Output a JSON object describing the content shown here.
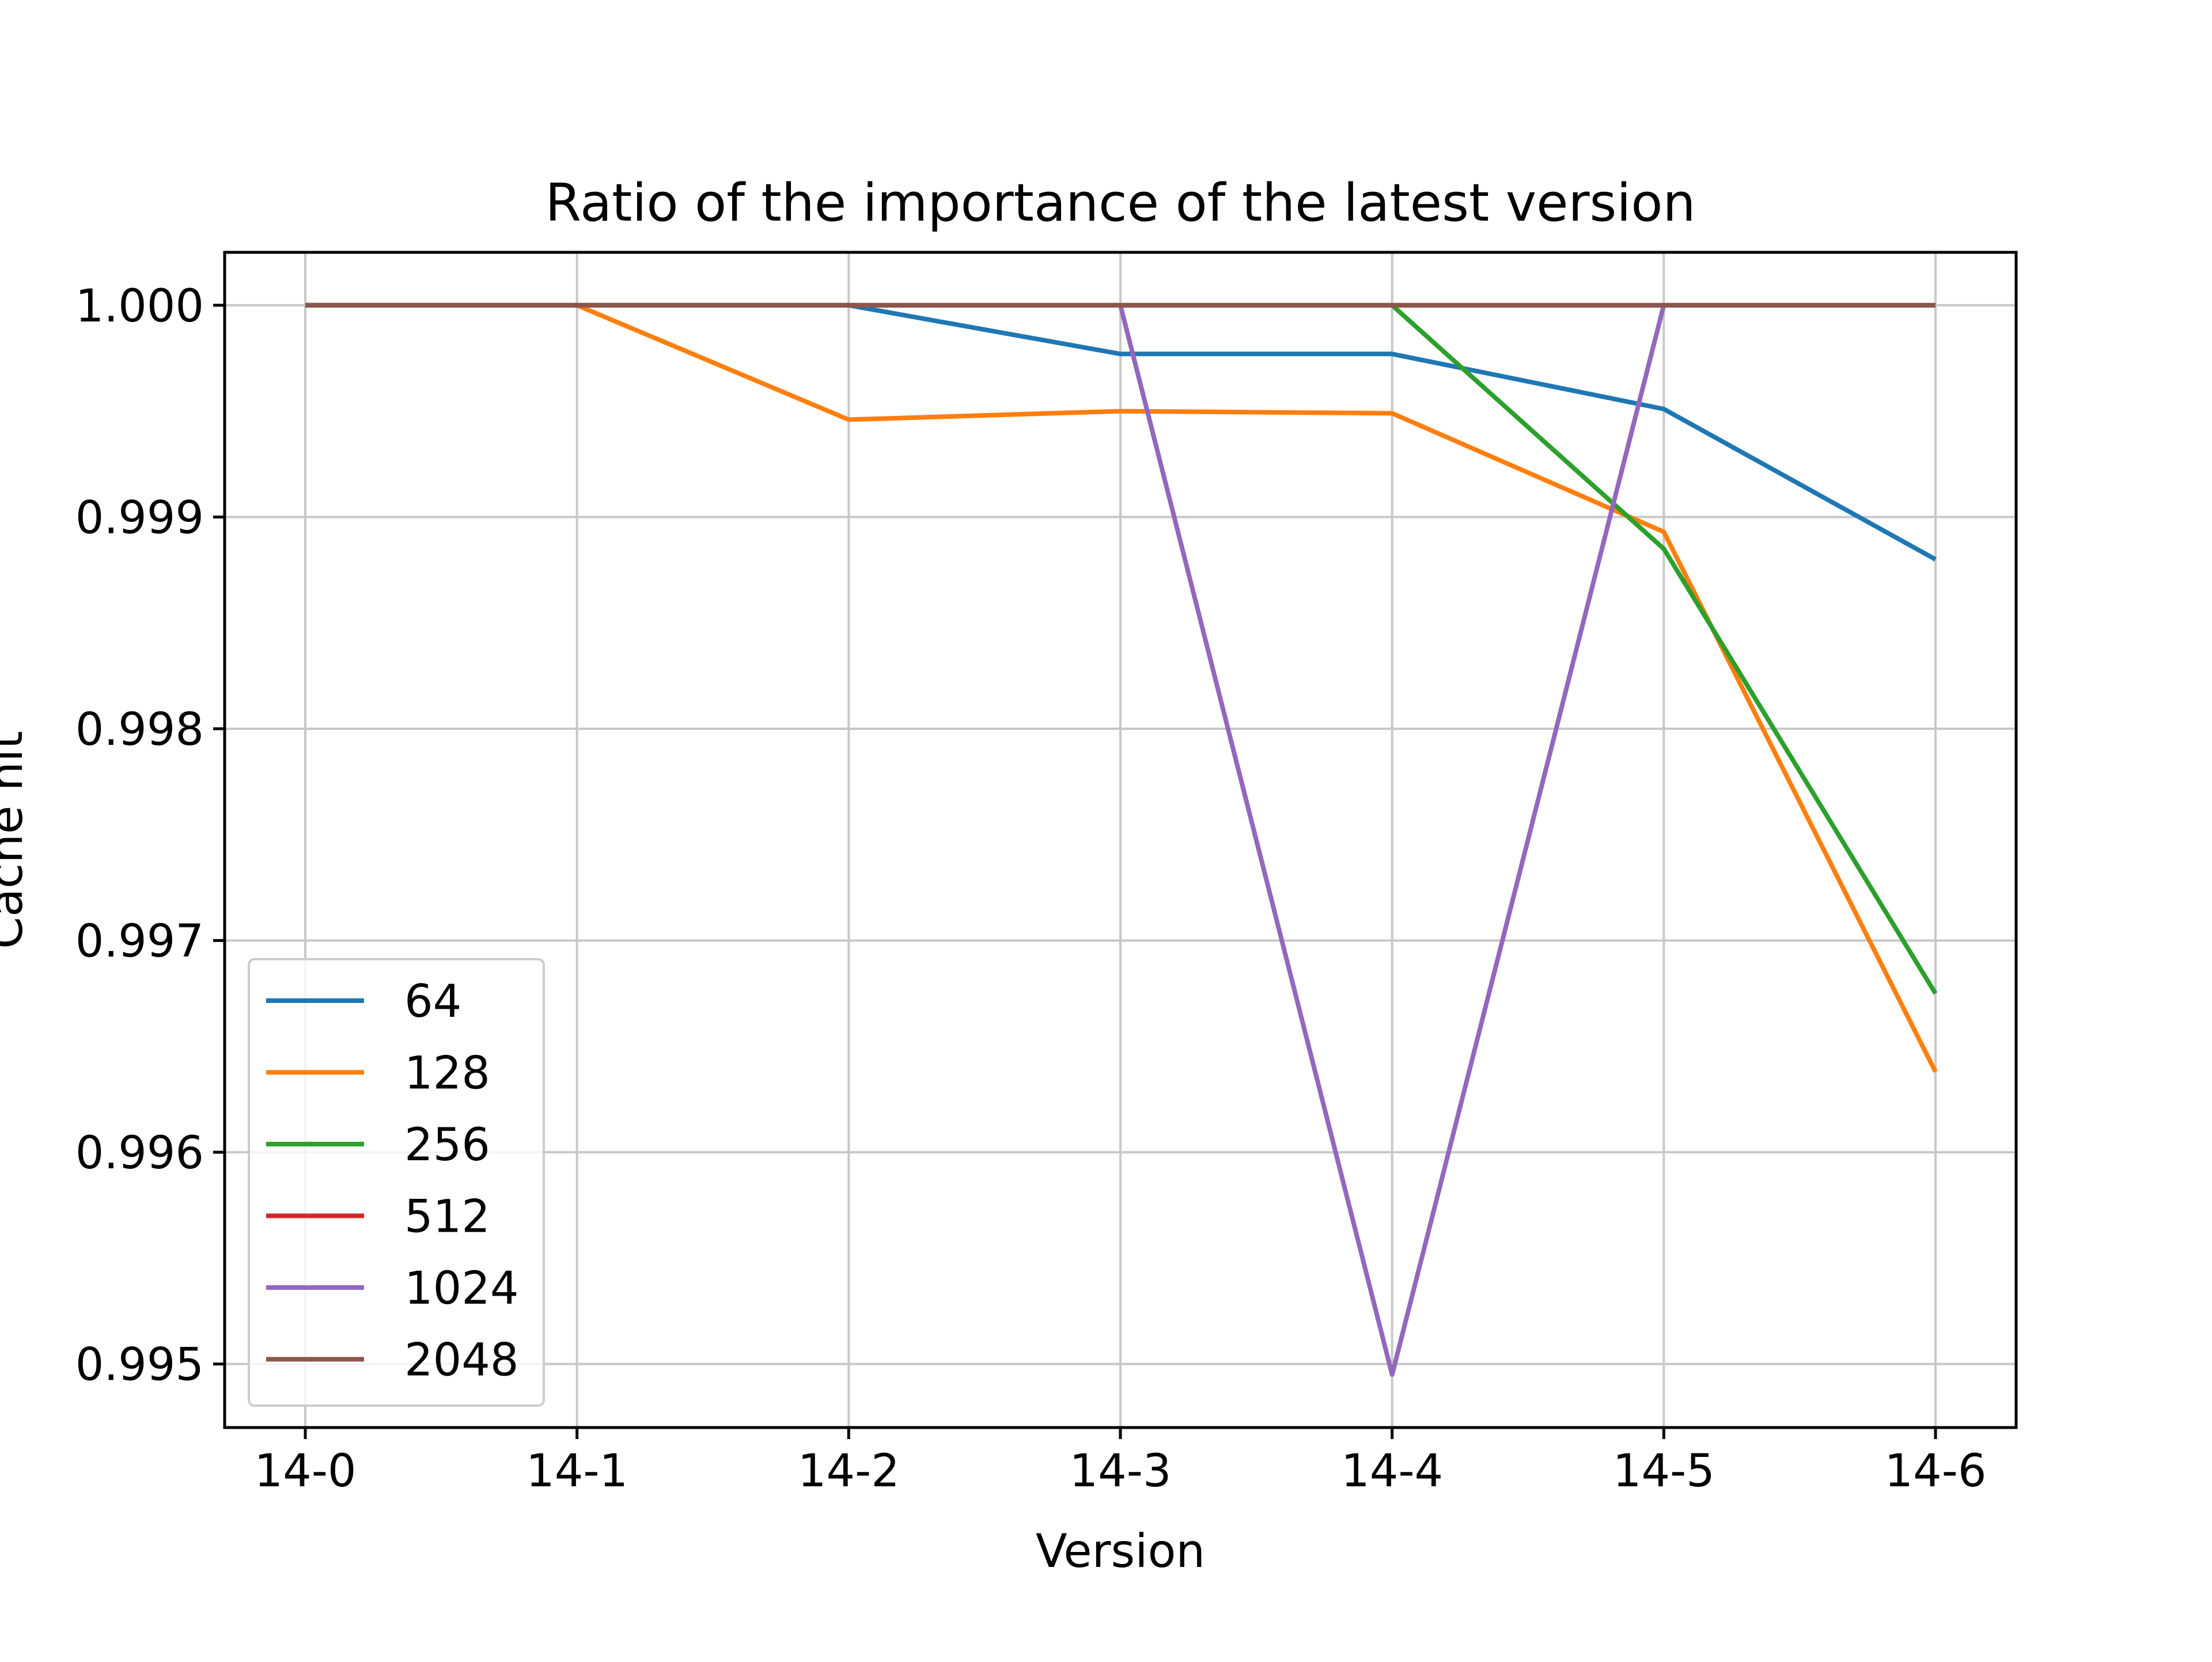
{
  "chart_data": {
    "type": "line",
    "title": "Ratio of the importance of the latest version",
    "xlabel": "Version",
    "ylabel": "Cache hit",
    "categories": [
      "14-0",
      "14-1",
      "14-2",
      "14-3",
      "14-4",
      "14-5",
      "14-6"
    ],
    "ylim": [
      0.9947,
      1.00025
    ],
    "yticks": [
      0.995,
      0.996,
      0.997,
      0.998,
      0.999,
      1.0
    ],
    "ytick_labels": [
      "0.995",
      "0.996",
      "0.997",
      "0.998",
      "0.999",
      "1.000"
    ],
    "grid": true,
    "legend": "lower-left",
    "series": [
      {
        "name": "64",
        "color": "#1f77b4",
        "values": [
          1.0,
          1.0,
          1.0,
          0.99977,
          0.99977,
          0.99951,
          0.9988
        ]
      },
      {
        "name": "128",
        "color": "#ff7f0e",
        "values": [
          1.0,
          1.0,
          0.99946,
          0.9995,
          0.99949,
          0.99893,
          0.99638
        ]
      },
      {
        "name": "256",
        "color": "#2ca02c",
        "values": [
          1.0,
          1.0,
          1.0,
          1.0,
          1.0,
          0.99885,
          0.99675
        ]
      },
      {
        "name": "512",
        "color": "#d62728",
        "values": [
          1.0,
          1.0,
          1.0,
          1.0,
          1.0,
          1.0,
          1.0
        ]
      },
      {
        "name": "1024",
        "color": "#9467bd",
        "values": [
          1.0,
          1.0,
          1.0,
          1.0,
          0.99495,
          1.0,
          1.0
        ]
      },
      {
        "name": "2048",
        "color": "#8c564b",
        "values": [
          1.0,
          1.0,
          1.0,
          1.0,
          1.0,
          1.0,
          1.0
        ]
      }
    ]
  }
}
